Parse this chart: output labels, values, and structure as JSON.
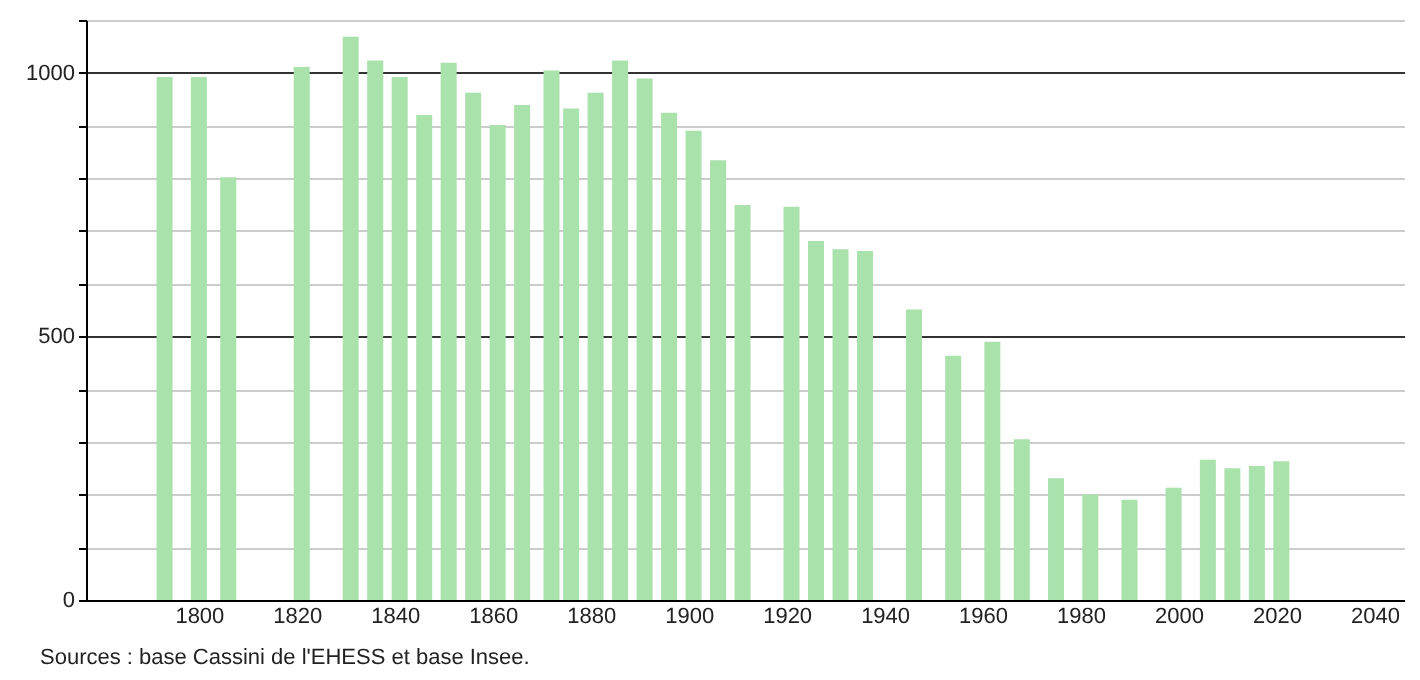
{
  "chart_data": {
    "type": "bar",
    "x": [
      1793,
      1800,
      1806,
      1821,
      1831,
      1836,
      1841,
      1846,
      1851,
      1856,
      1861,
      1866,
      1872,
      1876,
      1881,
      1886,
      1891,
      1896,
      1901,
      1906,
      1911,
      1921,
      1926,
      1931,
      1936,
      1946,
      1954,
      1962,
      1968,
      1975,
      1982,
      1990,
      1999,
      2006,
      2011,
      2016,
      2021
    ],
    "values": [
      992,
      992,
      802,
      1011,
      1068,
      1023,
      992,
      920,
      1019,
      962,
      901,
      939,
      1004,
      932,
      962,
      1023,
      989,
      924,
      890,
      834,
      749,
      746,
      681,
      665,
      662,
      551,
      463,
      490,
      305,
      231,
      200,
      190,
      213,
      266,
      250,
      254,
      263
    ],
    "color": "#a9e2ab",
    "xlim": [
      1779,
      2044
    ],
    "xticks": [
      1800,
      1820,
      1840,
      1860,
      1880,
      1900,
      1920,
      1940,
      1960,
      1980,
      2000,
      2020,
      2040
    ],
    "ylim": [
      0,
      1100
    ],
    "yticks": [
      0,
      {
        "value": 100,
        "label": null
      },
      {
        "value": 200,
        "label": null
      },
      {
        "value": 300,
        "label": null
      },
      {
        "value": 400,
        "label": null
      },
      500,
      {
        "value": 600,
        "label": null
      },
      {
        "value": 700,
        "label": null
      },
      {
        "value": 800,
        "label": null
      },
      {
        "value": 900,
        "label": null
      },
      1000,
      {
        "value": 1100,
        "label": null
      }
    ],
    "grid": "y",
    "annotations": [
      "Sources : base Cassini de l'EHESS et base Insee."
    ]
  }
}
